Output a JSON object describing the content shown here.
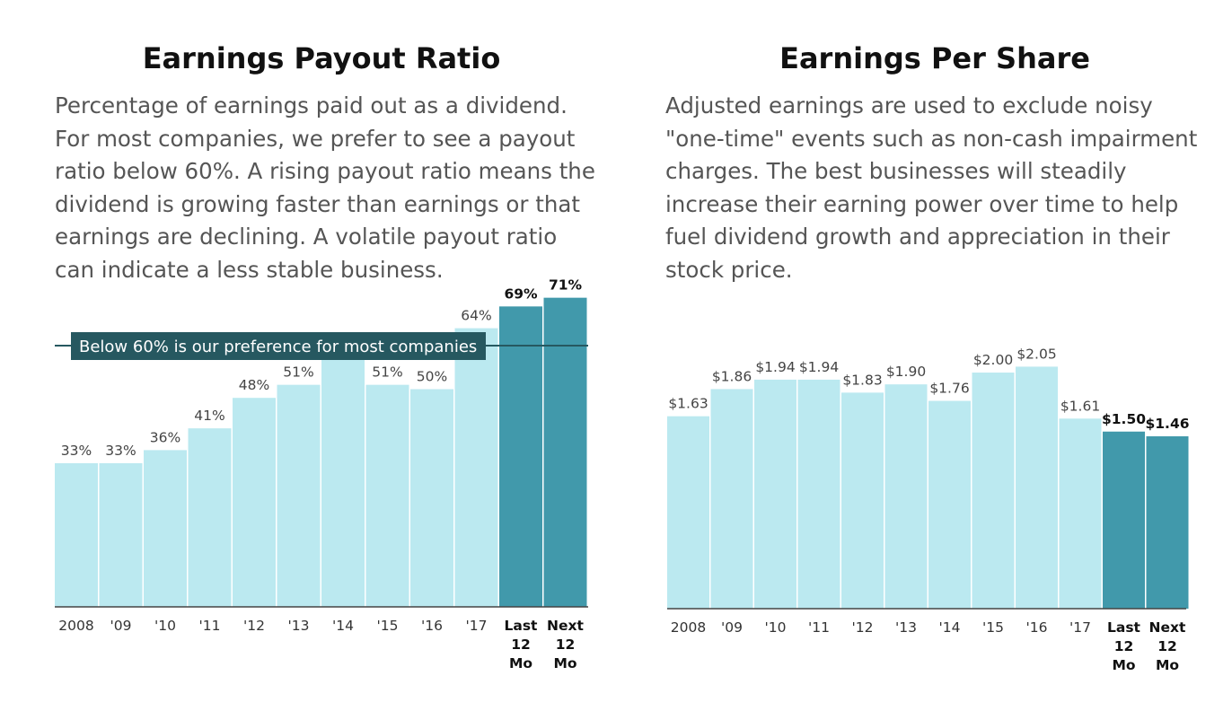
{
  "chart_data": [
    {
      "type": "bar",
      "title": "Earnings Payout Ratio",
      "subtitle": "Percentage of earnings paid out as a dividend. For most companies, we prefer to see a payout ratio below 60%. A rising payout ratio means the dividend is growing faster than earnings or that earnings are declining. A volatile payout ratio can indicate a less stable business.",
      "categories": [
        "2008",
        "'09",
        "'10",
        "'11",
        "'12",
        "'13",
        "'14",
        "'15",
        "'16",
        "'17",
        "Last 12 Mo",
        "Next 12 Mo"
      ],
      "values": [
        33,
        33,
        36,
        41,
        48,
        51,
        58,
        51,
        50,
        64,
        69,
        71
      ],
      "labels": [
        "33%",
        "33%",
        "36%",
        "41%",
        "48%",
        "51%",
        "",
        "51%",
        "50%",
        "64%",
        "69%",
        "71%"
      ],
      "highlight": [
        false,
        false,
        false,
        false,
        false,
        false,
        false,
        false,
        false,
        false,
        true,
        true
      ],
      "ylim": [
        0,
        80
      ],
      "reference_line": {
        "value": 60,
        "label": "Below 60% is our preference for most companies"
      },
      "xlabel": "",
      "ylabel": "",
      "grid": false,
      "colors": {
        "bar": "#bbe9f0",
        "highlight": "#4199ab",
        "annotation": "#265860"
      }
    },
    {
      "type": "bar",
      "title": "Earnings Per Share",
      "subtitle": "Adjusted earnings are used to exclude noisy \"one-time\" events such as non-cash impairment charges. The best businesses will steadily increase their earning power over time to help fuel dividend growth and appreciation in their stock price.",
      "categories": [
        "2008",
        "'09",
        "'10",
        "'11",
        "'12",
        "'13",
        "'14",
        "'15",
        "'16",
        "'17",
        "Last 12 Mo",
        "Next 12 Mo"
      ],
      "values": [
        1.63,
        1.86,
        1.94,
        1.94,
        1.83,
        1.9,
        1.76,
        2.0,
        2.05,
        1.61,
        1.5,
        1.46
      ],
      "labels": [
        "$1.63",
        "$1.86",
        "$1.94",
        "$1.94",
        "$1.83",
        "$1.90",
        "$1.76",
        "$2.00",
        "$2.05",
        "$1.61",
        "$1.50",
        "$1.46"
      ],
      "highlight": [
        false,
        false,
        false,
        false,
        false,
        false,
        false,
        false,
        false,
        false,
        true,
        true
      ],
      "ylim": [
        0,
        2.3
      ],
      "xlabel": "",
      "ylabel": "",
      "grid": false,
      "colors": {
        "bar": "#bbe9f0",
        "highlight": "#4199ab"
      }
    }
  ]
}
